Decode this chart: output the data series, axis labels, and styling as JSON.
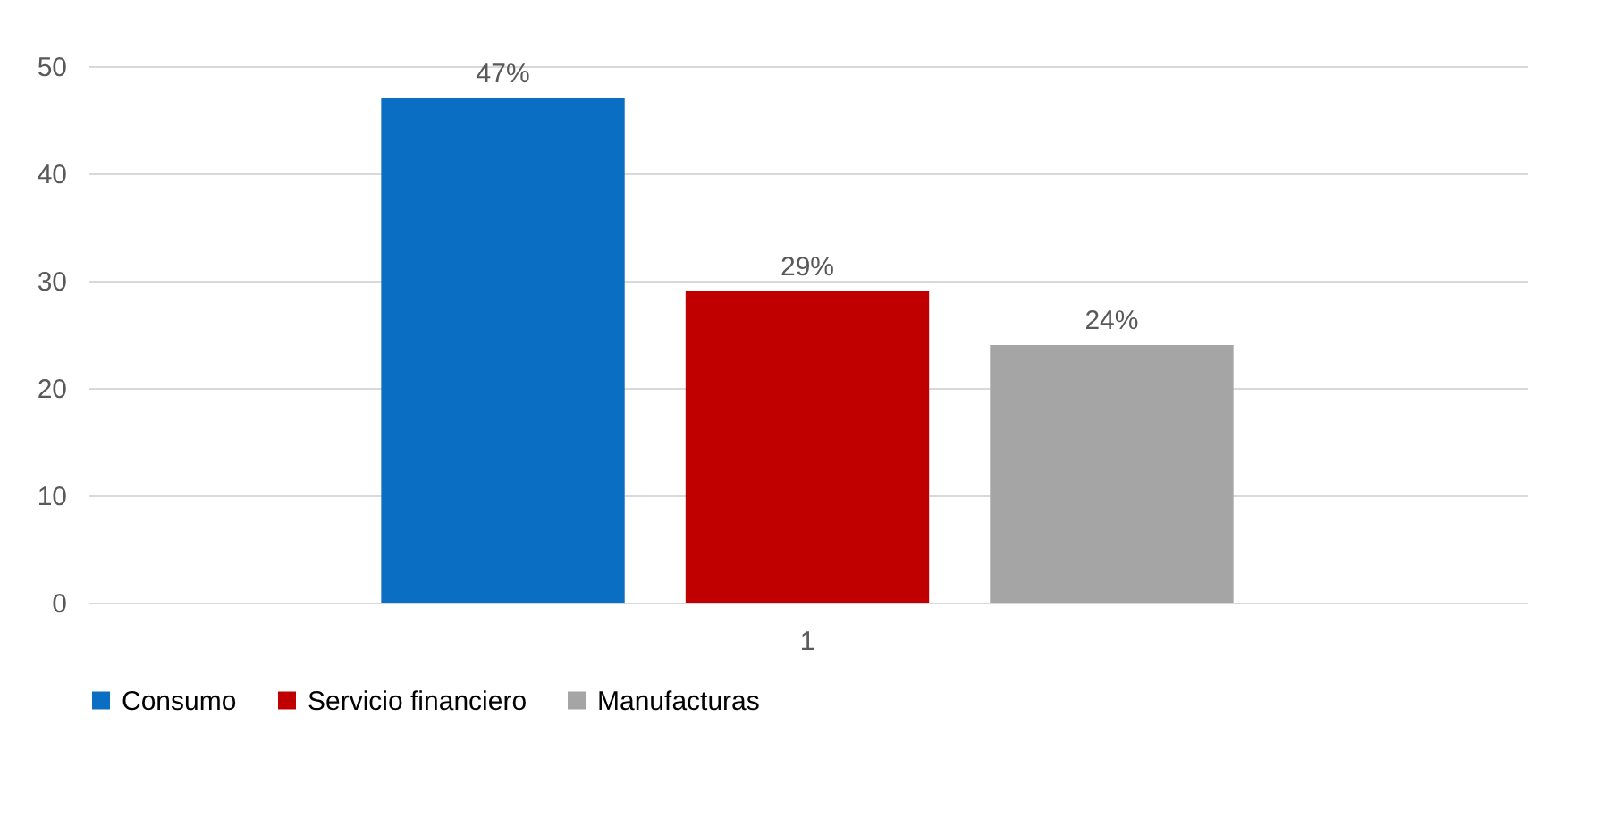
{
  "chart_data": {
    "type": "bar",
    "categories": [
      "1"
    ],
    "series": [
      {
        "name": "Consumo",
        "color": "#0a6fc2",
        "values": [
          47
        ],
        "value_labels": [
          "47%"
        ]
      },
      {
        "name": "Servicio financiero",
        "color": "#c00000",
        "values": [
          29
        ],
        "value_labels": [
          "29%"
        ]
      },
      {
        "name": "Manufacturas",
        "color": "#a5a5a5",
        "values": [
          24
        ],
        "value_labels": [
          "24%"
        ]
      }
    ],
    "ylim": [
      0,
      50
    ],
    "yticks": [
      0,
      10,
      20,
      30,
      40,
      50
    ],
    "grid": "y",
    "legend": "bottom"
  }
}
